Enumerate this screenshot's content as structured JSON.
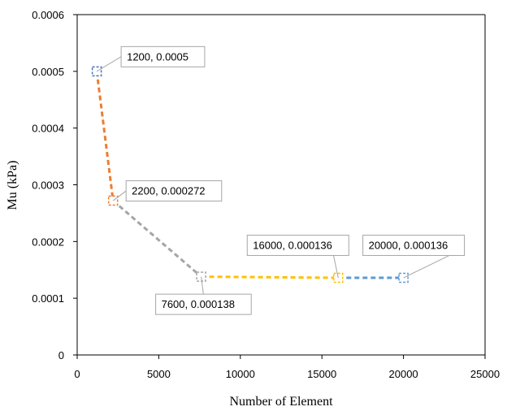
{
  "chart_data": {
    "type": "scatter",
    "title": "",
    "xlabel": "Number of Element",
    "ylabel": "Mu (kPa)",
    "xlim": [
      0,
      25000
    ],
    "ylim": [
      0,
      0.0006
    ],
    "x_ticks": [
      "0",
      "5000",
      "10000",
      "15000",
      "20000",
      "25000"
    ],
    "y_ticks": [
      "0",
      "0.0001",
      "0.0002",
      "0.0003",
      "0.0004",
      "0.0005",
      "0.0006"
    ],
    "grid": false,
    "legend": "none",
    "points": [
      {
        "x": 1200,
        "y": 0.0005,
        "label": "1200, 0.0005"
      },
      {
        "x": 2200,
        "y": 0.000272,
        "label": "2200, 0.000272"
      },
      {
        "x": 7600,
        "y": 0.000138,
        "label": "7600, 0.000138"
      },
      {
        "x": 16000,
        "y": 0.000136,
        "label": "16000, 0.000136"
      },
      {
        "x": 20000,
        "y": 0.000136,
        "label": "20000, 0.000136"
      }
    ],
    "segment_colors": [
      "#ED7D31",
      "#A5A5A5",
      "#FFC000",
      "#5B9BD5"
    ],
    "marker_color": "#4472C4",
    "line_style": "dashed"
  }
}
